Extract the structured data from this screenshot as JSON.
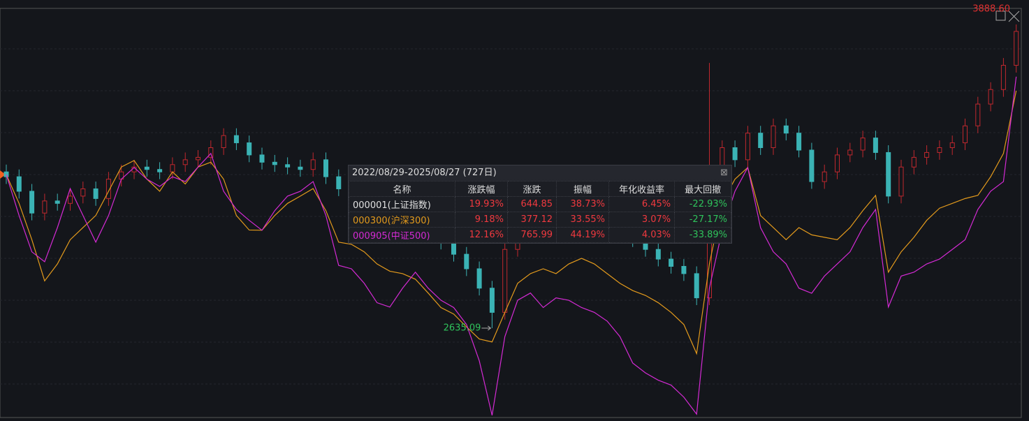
{
  "chart_data": {
    "type": "candlestick",
    "max_label": "3888.60",
    "min_label": "2635.09",
    "ylim": [
      2266,
      3955
    ],
    "up_color": "#c0282e",
    "down_color": "#3bb3b5",
    "open": [
      3280,
      3260,
      3200,
      3110,
      3160,
      3150,
      3180,
      3210,
      3170,
      3250,
      3280,
      3300,
      3290,
      3280,
      3310,
      3330,
      3340,
      3380,
      3430,
      3400,
      3350,
      3320,
      3310,
      3300,
      3290,
      3330,
      3260,
      3210,
      3180,
      3170,
      3150,
      3110,
      3080,
      3050,
      3030,
      2990,
      2940,
      2880,
      2800,
      2700,
      2960,
      3020,
      3080,
      3100,
      3140,
      3150,
      3120,
      3130,
      3090,
      3050,
      3000,
      2960,
      2920,
      2890,
      2860,
      2760,
      3100,
      3380,
      3330,
      3440,
      3380,
      3470,
      3440,
      3370,
      3240,
      3280,
      3350,
      3370,
      3420,
      3360,
      3180,
      3300,
      3340,
      3360,
      3380,
      3400,
      3470,
      3560,
      3620,
      3720
    ],
    "high": [
      3310,
      3290,
      3230,
      3190,
      3190,
      3210,
      3240,
      3240,
      3280,
      3310,
      3330,
      3330,
      3320,
      3340,
      3360,
      3370,
      3410,
      3460,
      3460,
      3430,
      3380,
      3350,
      3340,
      3330,
      3360,
      3360,
      3290,
      3240,
      3210,
      3200,
      3180,
      3140,
      3110,
      3080,
      3060,
      3020,
      2970,
      2910,
      2830,
      2990,
      3050,
      3110,
      3130,
      3170,
      3180,
      3180,
      3160,
      3160,
      3120,
      3080,
      3030,
      2990,
      2950,
      2920,
      2890,
      3730,
      3410,
      3410,
      3470,
      3470,
      3500,
      3500,
      3470,
      3400,
      3310,
      3380,
      3400,
      3450,
      3450,
      3390,
      3330,
      3370,
      3390,
      3410,
      3430,
      3500,
      3590,
      3650,
      3750,
      3888.6
    ],
    "low": [
      3230,
      3170,
      3080,
      3080,
      3120,
      3120,
      3150,
      3140,
      3140,
      3220,
      3250,
      3260,
      3250,
      3250,
      3280,
      3300,
      3310,
      3350,
      3370,
      3320,
      3290,
      3280,
      3270,
      3260,
      3260,
      3230,
      3180,
      3150,
      3140,
      3120,
      3080,
      3050,
      3020,
      3000,
      2960,
      2910,
      2850,
      2770,
      2635.09,
      2670,
      2930,
      2990,
      3050,
      3070,
      3110,
      3090,
      3090,
      3060,
      3020,
      2970,
      2930,
      2890,
      2860,
      2830,
      2730,
      2730,
      3070,
      3300,
      3300,
      3350,
      3350,
      3410,
      3340,
      3210,
      3210,
      3250,
      3320,
      3340,
      3330,
      3150,
      3150,
      3270,
      3310,
      3330,
      3350,
      3370,
      3440,
      3530,
      3590,
      3690
    ],
    "close": [
      3260,
      3200,
      3110,
      3160,
      3150,
      3180,
      3210,
      3170,
      3250,
      3280,
      3300,
      3290,
      3280,
      3310,
      3330,
      3340,
      3380,
      3430,
      3400,
      3350,
      3320,
      3310,
      3300,
      3290,
      3330,
      3260,
      3210,
      3180,
      3170,
      3150,
      3110,
      3080,
      3050,
      3030,
      2990,
      2940,
      2880,
      2800,
      2700,
      2960,
      3020,
      3080,
      3100,
      3140,
      3150,
      3120,
      3130,
      3090,
      3050,
      3000,
      2960,
      2920,
      2890,
      2860,
      2760,
      3100,
      3380,
      3330,
      3440,
      3380,
      3470,
      3440,
      3370,
      3240,
      3280,
      3350,
      3370,
      3420,
      3360,
      3180,
      3300,
      3340,
      3360,
      3380,
      3400,
      3470,
      3560,
      3620,
      3720,
      3860
    ],
    "series": [
      {
        "name": "000300(沪深300)",
        "color": "#e39a1c",
        "values": [
          3269,
          3150,
          3000,
          2830,
          2900,
          3000,
          3050,
          3100,
          3200,
          3300,
          3327,
          3250,
          3200,
          3280,
          3230,
          3300,
          3320,
          3250,
          3100,
          3040,
          3039,
          3100,
          3150,
          3180,
          3211,
          3120,
          2990,
          2981,
          2950,
          2900,
          2870,
          2860,
          2837,
          2780,
          2720,
          2693,
          2640,
          2590,
          2578,
          2700,
          2820,
          2860,
          2880,
          2860,
          2900,
          2923,
          2900,
          2860,
          2820,
          2790,
          2770,
          2740,
          2700,
          2650,
          2530,
          2900,
          3154,
          3250,
          3298,
          3100,
          3050,
          3000,
          3050,
          3020,
          3010,
          3000,
          3050,
          3120,
          3183,
          2866,
          2950,
          3010,
          3080,
          3130,
          3150,
          3170,
          3183,
          3260,
          3356,
          3615
        ]
      },
      {
        "name": "000905(中证500)",
        "color": "#d42ad4",
        "values": [
          3269,
          3100,
          2950,
          2909,
          3050,
          3211,
          3100,
          2990,
          3100,
          3250,
          3298,
          3250,
          3220,
          3260,
          3240,
          3300,
          3356,
          3200,
          3125,
          3080,
          3039,
          3120,
          3180,
          3200,
          3240,
          3100,
          2894,
          2880,
          2820,
          2740,
          2722,
          2800,
          2866,
          2800,
          2750,
          2720,
          2650,
          2500,
          2275,
          2600,
          2750,
          2780,
          2720,
          2760,
          2750,
          2720,
          2700,
          2664,
          2600,
          2491,
          2450,
          2420,
          2400,
          2350,
          2280,
          2800,
          3039,
          3200,
          3298,
          3050,
          2950,
          2900,
          2800,
          2779,
          2850,
          2900,
          2950,
          3050,
          3125,
          2722,
          2850,
          2866,
          2900,
          2920,
          2960,
          3000,
          3125,
          3200,
          3240,
          3673
        ]
      }
    ]
  },
  "stats_table": {
    "title": "2022/08/29-2025/08/27 (727日)",
    "header": [
      "名称",
      "涨跌幅",
      "涨跌",
      "振幅",
      "年化收益率",
      "最大回撤"
    ],
    "rows": [
      [
        "000001(上证指数)",
        "19.93%",
        "644.85",
        "38.73%",
        "6.45%",
        "-22.93%"
      ],
      [
        "000300(沪深300)",
        "9.18%",
        "377.12",
        "33.55%",
        "3.07%",
        "-27.17%"
      ],
      [
        "000905(中证500)",
        "12.16%",
        "765.99",
        "44.19%",
        "4.03%",
        "-33.89%"
      ]
    ],
    "row_colors": [
      "#e0e0e0",
      "#e39a1c",
      "#d42ad4"
    ],
    "up_color": "#f0393f",
    "down_color": "#2fc25b"
  }
}
